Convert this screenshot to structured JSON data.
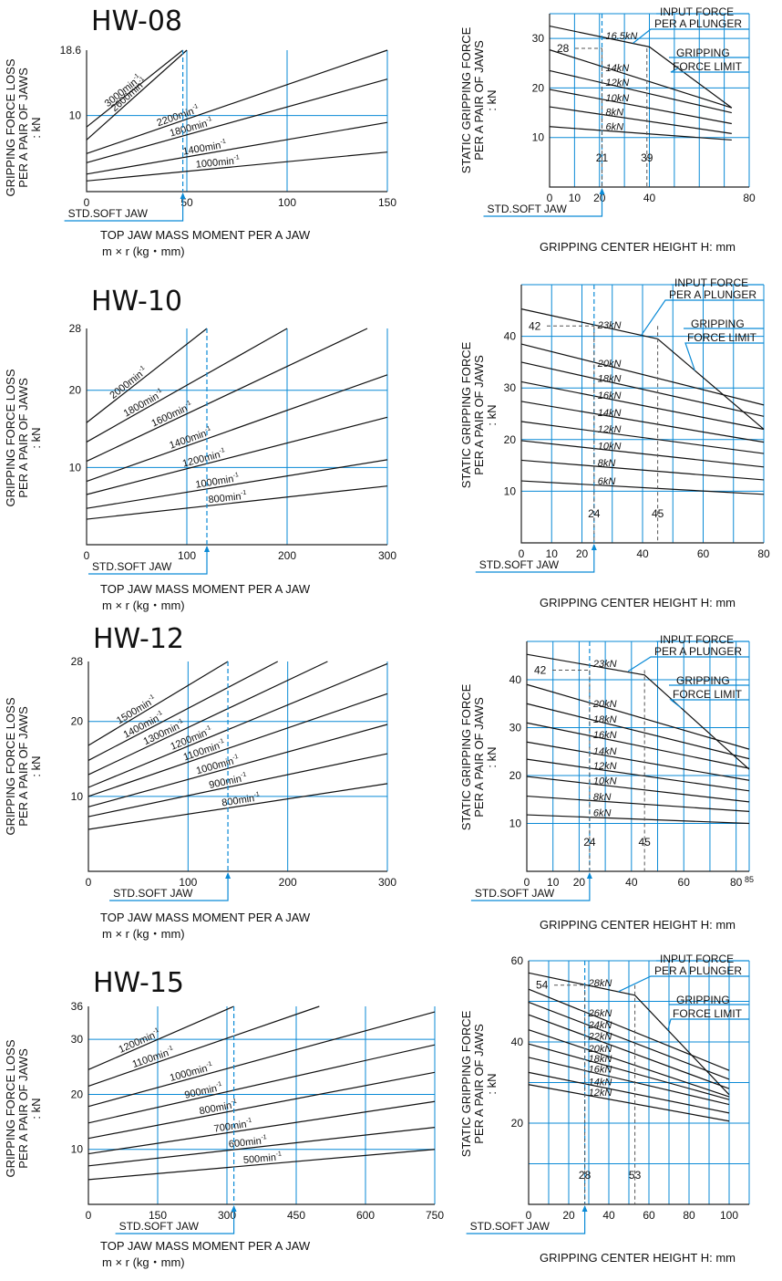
{
  "chart_data": [
    {
      "type": "line",
      "id": "hw08-loss",
      "title": "HW-08",
      "xlabel": "TOP JAW MASS MOMENT PER A JAW",
      "xlabel2": "m × r  (kg・mm)",
      "ylabel_lines": [
        "GRIPPING FORCE LOSS",
        "PER A PAIR OF JAWS",
        ": kN"
      ],
      "xlim": [
        0,
        150
      ],
      "ylim": [
        0,
        18.6
      ],
      "xticks": [
        0,
        50,
        100,
        150
      ],
      "yticks": [
        10,
        18.6
      ],
      "grid_x": [
        50,
        100,
        150
      ],
      "grid_y": [
        10
      ],
      "marker": {
        "x": 48,
        "label": "STD.SOFT JAW"
      },
      "series": [
        {
          "name": "3000min-1",
          "x": [
            0,
            48
          ],
          "y": [
            8.5,
            18.6
          ]
        },
        {
          "name": "2600min-1",
          "x": [
            0,
            50
          ],
          "y": [
            6.8,
            18.6
          ]
        },
        {
          "name": "2200min-1",
          "x": [
            0,
            150
          ],
          "y": [
            5.0,
            18.6
          ]
        },
        {
          "name": "1800min-1",
          "x": [
            0,
            150
          ],
          "y": [
            3.8,
            14.8
          ]
        },
        {
          "name": "1400min-1",
          "x": [
            0,
            150
          ],
          "y": [
            2.3,
            9.1
          ]
        },
        {
          "name": "1000min-1",
          "x": [
            0,
            150
          ],
          "y": [
            1.4,
            5.2
          ]
        }
      ]
    },
    {
      "type": "line",
      "id": "hw08-static",
      "ylabel_lines": [
        "STATIC GRIPPING FORCE",
        "PER A PAIR OF JAWS",
        ": kN"
      ],
      "xlabel": "GRIPPING CENTER HEIGHT H: mm",
      "xlim": [
        0,
        80
      ],
      "ylim": [
        0,
        35
      ],
      "xticks": [
        0,
        10,
        20,
        40,
        80
      ],
      "yticks": [
        10,
        20,
        30
      ],
      "grid_x": [
        10,
        20,
        30,
        40,
        50,
        60,
        70,
        80
      ],
      "grid_y": [
        10,
        20,
        30
      ],
      "marker": {
        "x": 21,
        "label": "STD.SOFT JAW"
      },
      "ref_x": [
        21,
        39
      ],
      "ref_y": 28,
      "annotations": [
        "INPUT FORCE",
        "PER A PLUNGER",
        "GRIPPING",
        "FORCE LIMIT",
        "28",
        "21",
        "39"
      ],
      "series": [
        {
          "name": "16.5kN",
          "x": [
            0,
            40,
            73
          ],
          "y": [
            32.5,
            28.3,
            16
          ]
        },
        {
          "name": "14kN",
          "x": [
            0,
            73
          ],
          "y": [
            27.7,
            16
          ]
        },
        {
          "name": "12kN",
          "x": [
            0,
            73
          ],
          "y": [
            23.5,
            15
          ]
        },
        {
          "name": "10kN",
          "x": [
            0,
            73
          ],
          "y": [
            19.7,
            12.8
          ]
        },
        {
          "name": "8kN",
          "x": [
            0,
            73
          ],
          "y": [
            16.2,
            10.8
          ]
        },
        {
          "name": "6kN",
          "x": [
            0,
            73
          ],
          "y": [
            12.2,
            9.5
          ]
        }
      ]
    },
    {
      "type": "line",
      "id": "hw10-loss",
      "title": "HW-10",
      "xlabel": "TOP JAW MASS MOMENT PER A JAW",
      "xlabel2": "m × r  (kg・mm)",
      "ylabel_lines": [
        "GRIPPING FORCE LOSS",
        "PER A PAIR OF JAWS",
        ": kN"
      ],
      "xlim": [
        0,
        300
      ],
      "ylim": [
        0,
        28
      ],
      "xticks": [
        0,
        100,
        200,
        300
      ],
      "yticks": [
        10,
        20,
        28
      ],
      "grid_x": [
        100,
        200,
        300
      ],
      "grid_y": [
        10,
        20
      ],
      "marker": {
        "x": 120,
        "label": "STD.SOFT JAW"
      },
      "series": [
        {
          "name": "2000min-1",
          "x": [
            0,
            120
          ],
          "y": [
            15.8,
            28
          ]
        },
        {
          "name": "1800min-1",
          "x": [
            0,
            200
          ],
          "y": [
            13.3,
            28
          ]
        },
        {
          "name": "1600min-1",
          "x": [
            0,
            280
          ],
          "y": [
            10.8,
            28
          ]
        },
        {
          "name": "1400min-1",
          "x": [
            0,
            300
          ],
          "y": [
            8.2,
            22
          ]
        },
        {
          "name": "1200min-1",
          "x": [
            0,
            300
          ],
          "y": [
            6.5,
            16.5
          ]
        },
        {
          "name": "1000min-1",
          "x": [
            0,
            300
          ],
          "y": [
            4.7,
            11
          ]
        },
        {
          "name": "800min-1",
          "x": [
            0,
            300
          ],
          "y": [
            3.3,
            7.6
          ]
        }
      ]
    },
    {
      "type": "line",
      "id": "hw10-static",
      "ylabel_lines": [
        "STATIC GRIPPING FORCE",
        "PER A PAIR OF JAWS",
        ": kN"
      ],
      "xlabel": "GRIPPING CENTER HEIGHT H: mm",
      "xlim": [
        0,
        80
      ],
      "ylim": [
        0,
        50
      ],
      "xticks": [
        0,
        10,
        20,
        40,
        60,
        80
      ],
      "yticks": [
        10,
        20,
        30,
        40
      ],
      "grid_x": [
        10,
        20,
        30,
        40,
        50,
        60,
        70,
        80
      ],
      "grid_y": [
        10,
        20,
        30,
        40
      ],
      "marker": {
        "x": 24,
        "label": "STD.SOFT JAW"
      },
      "ref_x": [
        24,
        45
      ],
      "ref_y": 42,
      "annotations": [
        "INPUT FORCE",
        "PER A PLUNGER",
        "GRIPPING",
        "FORCE LIMIT",
        "42",
        "24",
        "45"
      ],
      "series": [
        {
          "name": "23kN",
          "x": [
            0,
            45,
            80
          ],
          "y": [
            45.3,
            39.5,
            22
          ]
        },
        {
          "name": "20kN",
          "x": [
            0,
            80
          ],
          "y": [
            38.5,
            26.7
          ]
        },
        {
          "name": "18kN",
          "x": [
            0,
            80
          ],
          "y": [
            35,
            24.5
          ]
        },
        {
          "name": "16kN",
          "x": [
            0,
            80
          ],
          "y": [
            31.2,
            22
          ]
        },
        {
          "name": "14kN",
          "x": [
            0,
            80
          ],
          "y": [
            27.4,
            19.5
          ]
        },
        {
          "name": "12kN",
          "x": [
            0,
            80
          ],
          "y": [
            23.5,
            17.3
          ]
        },
        {
          "name": "10kN",
          "x": [
            0,
            80
          ],
          "y": [
            19.8,
            14.7
          ]
        },
        {
          "name": "8kN",
          "x": [
            0,
            80
          ],
          "y": [
            16.0,
            12.2
          ]
        },
        {
          "name": "6kN",
          "x": [
            0,
            80
          ],
          "y": [
            12.0,
            9.4
          ]
        }
      ]
    },
    {
      "type": "line",
      "id": "hw12-loss",
      "title": "HW-12",
      "xlabel": "TOP JAW MASS MOMENT PER A JAW",
      "xlabel2": "m × r  (kg・mm)",
      "ylabel_lines": [
        "GRIPPING FORCE LOSS",
        "PER A PAIR OF JAWS",
        ": kN"
      ],
      "xlim": [
        0,
        300
      ],
      "ylim": [
        0,
        28
      ],
      "xticks": [
        0,
        100,
        200,
        300
      ],
      "yticks": [
        10,
        20,
        28
      ],
      "grid_x": [
        100,
        200,
        300
      ],
      "grid_y": [
        10,
        20
      ],
      "marker": {
        "x": 140,
        "label": "STD.SOFT JAW"
      },
      "series": [
        {
          "name": "1500min-1",
          "x": [
            0,
            140
          ],
          "y": [
            16.8,
            28
          ]
        },
        {
          "name": "1400min-1",
          "x": [
            0,
            190
          ],
          "y": [
            14.8,
            28
          ]
        },
        {
          "name": "1300min-1",
          "x": [
            0,
            240
          ],
          "y": [
            12.9,
            28
          ]
        },
        {
          "name": "1200min-1",
          "x": [
            0,
            300
          ],
          "y": [
            11.2,
            27.7
          ]
        },
        {
          "name": "1100min-1",
          "x": [
            0,
            300
          ],
          "y": [
            10.0,
            23.7
          ]
        },
        {
          "name": "1000min-1",
          "x": [
            0,
            300
          ],
          "y": [
            8.6,
            19.6
          ]
        },
        {
          "name": "900min-1",
          "x": [
            0,
            300
          ],
          "y": [
            7.3,
            15.7
          ]
        },
        {
          "name": "800min-1",
          "x": [
            0,
            300
          ],
          "y": [
            5.6,
            11.7
          ]
        }
      ]
    },
    {
      "type": "line",
      "id": "hw12-static",
      "ylabel_lines": [
        "STATIC GRIPPING FORCE",
        "PER A PAIR OF JAWS",
        ": kN"
      ],
      "xlabel": "GRIPPING CENTER HEIGHT H: mm",
      "xlim": [
        0,
        85
      ],
      "ylim": [
        0,
        48
      ],
      "xticks": [
        0,
        10,
        20,
        40,
        60,
        80,
        85
      ],
      "yticks": [
        10,
        20,
        30,
        40
      ],
      "grid_x": [
        10,
        20,
        30,
        40,
        50,
        60,
        70,
        80,
        85
      ],
      "grid_y": [
        10,
        20,
        30,
        40
      ],
      "marker": {
        "x": 24,
        "label": "STD.SOFT JAW"
      },
      "ref_x": [
        24,
        45
      ],
      "ref_y": 42,
      "annotations": [
        "INPUT FORCE",
        "PER A PLUNGER",
        "GRIPPING",
        "FORCE LIMIT",
        "42",
        "24",
        "45"
      ],
      "series": [
        {
          "name": "23kN",
          "x": [
            0,
            45,
            85
          ],
          "y": [
            45.3,
            41,
            21.3
          ]
        },
        {
          "name": "20kN",
          "x": [
            0,
            85
          ],
          "y": [
            39,
            25.5
          ]
        },
        {
          "name": "18kN",
          "x": [
            0,
            85
          ],
          "y": [
            35,
            23.5
          ]
        },
        {
          "name": "16kN",
          "x": [
            0,
            85
          ],
          "y": [
            31,
            21.5
          ]
        },
        {
          "name": "14kN",
          "x": [
            0,
            85
          ],
          "y": [
            27,
            19
          ]
        },
        {
          "name": "12kN",
          "x": [
            0,
            85
          ],
          "y": [
            23.4,
            16.8
          ]
        },
        {
          "name": "10kN",
          "x": [
            0,
            85
          ],
          "y": [
            19.8,
            14.5
          ]
        },
        {
          "name": "8kN",
          "x": [
            0,
            85
          ],
          "y": [
            15.7,
            12.5
          ]
        },
        {
          "name": "6kN",
          "x": [
            0,
            85
          ],
          "y": [
            11.8,
            10.0
          ]
        }
      ]
    },
    {
      "type": "line",
      "id": "hw15-loss",
      "title": "HW-15",
      "xlabel": "TOP JAW MASS MOMENT PER A JAW",
      "xlabel2": "m × r  (kg・mm)",
      "ylabel_lines": [
        "GRIPPING FORCE LOSS",
        "PER A PAIR OF JAWS",
        ": kN"
      ],
      "xlim": [
        0,
        750
      ],
      "ylim": [
        0,
        36
      ],
      "xticks": [
        0,
        150,
        300,
        450,
        600,
        750
      ],
      "yticks": [
        10,
        20,
        30,
        36
      ],
      "grid_x": [
        150,
        300,
        450,
        600,
        750
      ],
      "grid_y": [
        10,
        20,
        30
      ],
      "marker": {
        "x": 315,
        "label": "STD.SOFT JAW"
      },
      "series": [
        {
          "name": "1200min-1",
          "x": [
            0,
            315
          ],
          "y": [
            24.5,
            36
          ]
        },
        {
          "name": "1100min-1",
          "x": [
            0,
            500
          ],
          "y": [
            21.5,
            36
          ]
        },
        {
          "name": "1000min-1",
          "x": [
            0,
            750
          ],
          "y": [
            17.8,
            35
          ]
        },
        {
          "name": "900min-1",
          "x": [
            0,
            750
          ],
          "y": [
            14.8,
            29
          ]
        },
        {
          "name": "800min-1",
          "x": [
            0,
            750
          ],
          "y": [
            12.0,
            24
          ]
        },
        {
          "name": "700min-1",
          "x": [
            0,
            750
          ],
          "y": [
            9.2,
            18.7
          ]
        },
        {
          "name": "600min-1",
          "x": [
            0,
            750
          ],
          "y": [
            7.0,
            14
          ]
        },
        {
          "name": "500min-1",
          "x": [
            0,
            750
          ],
          "y": [
            4.5,
            10
          ]
        }
      ]
    },
    {
      "type": "line",
      "id": "hw15-static",
      "ylabel_lines": [
        "STATIC GRIPPING FORCE",
        "PER A PAIR OF JAWS",
        ": kN"
      ],
      "xlabel": "GRIPPING CENTER HEIGHT H: mm",
      "xlim": [
        0,
        110
      ],
      "ylim": [
        0,
        60
      ],
      "xticks": [
        0,
        20,
        40,
        60,
        80,
        100
      ],
      "yticks": [
        20,
        40,
        60
      ],
      "grid_x": [
        10,
        20,
        30,
        40,
        50,
        60,
        70,
        80,
        90,
        100,
        110
      ],
      "grid_y": [
        10,
        20,
        30,
        40,
        50
      ],
      "marker": {
        "x": 28,
        "label": "STD.SOFT JAW"
      },
      "ref_x": [
        28,
        53
      ],
      "ref_y": 54,
      "annotations": [
        "INPUT FORCE",
        "PER A PLUNGER",
        "GRIPPING",
        "FORCE LIMIT",
        "54",
        "28",
        "53"
      ],
      "series": [
        {
          "name": "28kN",
          "x": [
            0,
            53,
            100
          ],
          "y": [
            57,
            51.5,
            27
          ]
        },
        {
          "name": "26kN",
          "x": [
            0,
            100
          ],
          "y": [
            53,
            33
          ]
        },
        {
          "name": "24kN",
          "x": [
            0,
            100
          ],
          "y": [
            49.8,
            30.8
          ]
        },
        {
          "name": "22kN",
          "x": [
            0,
            100
          ],
          "y": [
            46.7,
            28.5
          ]
        },
        {
          "name": "20kN",
          "x": [
            0,
            100
          ],
          "y": [
            43,
            26.5
          ]
        },
        {
          "name": "18kN",
          "x": [
            0,
            100
          ],
          "y": [
            39.5,
            25.8
          ]
        },
        {
          "name": "16kN",
          "x": [
            0,
            100
          ],
          "y": [
            36.2,
            24.6
          ]
        },
        {
          "name": "14kN",
          "x": [
            0,
            100
          ],
          "y": [
            32.5,
            22.5
          ]
        },
        {
          "name": "12kN",
          "x": [
            0,
            100
          ],
          "y": [
            29.5,
            20.5
          ]
        }
      ]
    }
  ]
}
